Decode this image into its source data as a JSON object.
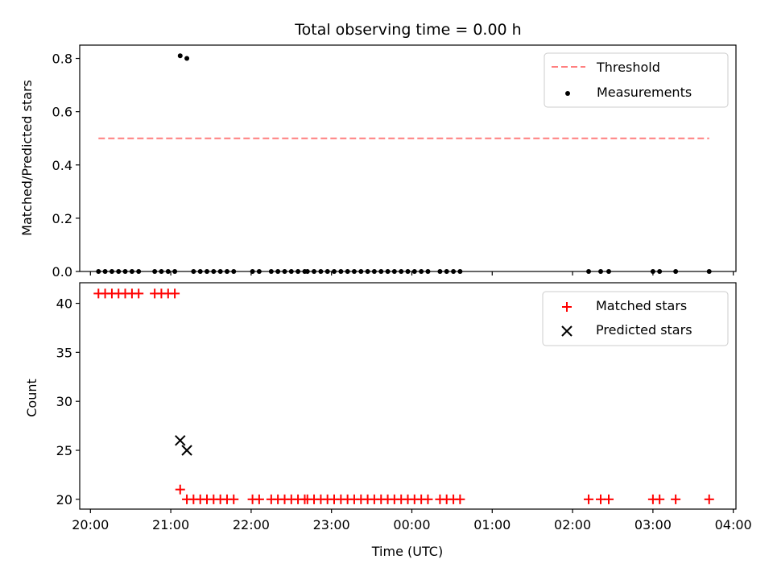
{
  "chart_data": [
    {
      "type": "scatter",
      "panel": "top",
      "title": "Total observing time = 0.00 h",
      "xlabel": "",
      "ylabel": "Matched/Predicted stars",
      "ylim": [
        0,
        0.85
      ],
      "yticks": [
        0.0,
        0.2,
        0.4,
        0.6,
        0.8
      ],
      "ytick_labels": [
        "0.0",
        "0.2",
        "0.4",
        "0.6",
        "0.8"
      ],
      "xlim": [
        -0.1333,
        8.0333
      ],
      "xtick_values": [
        0,
        1,
        2,
        3,
        4,
        5,
        6,
        7,
        8
      ],
      "grid": false,
      "legend": "top-right",
      "series": [
        {
          "name": "Threshold",
          "kind": "line",
          "style": "dashed",
          "color": "#ff7f7f",
          "x": [
            0.1,
            7.7
          ],
          "y": [
            0.5,
            0.5
          ]
        },
        {
          "name": "Measurements",
          "kind": "scatter",
          "marker": "dot",
          "color": "#000000",
          "x": [
            0.1,
            0.183,
            0.267,
            0.35,
            0.433,
            0.517,
            0.6,
            0.8,
            0.883,
            0.967,
            1.05,
            1.117,
            1.2,
            1.283,
            1.367,
            1.45,
            1.533,
            1.617,
            1.7,
            1.783,
            2.017,
            2.1,
            2.25,
            2.333,
            2.417,
            2.5,
            2.583,
            2.667,
            2.7,
            2.783,
            2.867,
            2.95,
            3.033,
            3.117,
            3.2,
            3.283,
            3.367,
            3.45,
            3.533,
            3.617,
            3.7,
            3.783,
            3.867,
            3.95,
            4.033,
            4.117,
            4.2,
            4.35,
            4.433,
            4.517,
            4.6,
            6.2,
            6.35,
            6.45,
            7.0,
            7.083,
            7.283,
            7.7
          ],
          "y": [
            0,
            0,
            0,
            0,
            0,
            0,
            0,
            0,
            0,
            0,
            0,
            0.81,
            0.8,
            0,
            0,
            0,
            0,
            0,
            0,
            0,
            0,
            0,
            0,
            0,
            0,
            0,
            0,
            0,
            0,
            0,
            0,
            0,
            0,
            0,
            0,
            0,
            0,
            0,
            0,
            0,
            0,
            0,
            0,
            0,
            0,
            0,
            0,
            0,
            0,
            0,
            0,
            0,
            0,
            0,
            0,
            0,
            0,
            0
          ]
        }
      ]
    },
    {
      "type": "scatter",
      "panel": "bottom",
      "title": "",
      "xlabel": "Time (UTC)",
      "ylabel": "Count",
      "ylim": [
        19.0,
        42.1
      ],
      "yticks": [
        20,
        25,
        30,
        35,
        40
      ],
      "ytick_labels": [
        "20",
        "25",
        "30",
        "35",
        "40"
      ],
      "xlim": [
        -0.1333,
        8.0333
      ],
      "xtick_values": [
        0,
        1,
        2,
        3,
        4,
        5,
        6,
        7,
        8
      ],
      "xtick_labels": [
        "20:00",
        "21:00",
        "22:00",
        "23:00",
        "00:00",
        "01:00",
        "02:00",
        "03:00",
        "04:00"
      ],
      "grid": false,
      "legend": "top-right",
      "series": [
        {
          "name": "Matched stars",
          "kind": "scatter",
          "marker": "plus",
          "color": "#ff0000",
          "x": [
            0.1,
            0.183,
            0.267,
            0.35,
            0.433,
            0.517,
            0.6,
            0.8,
            0.883,
            0.967,
            1.05,
            1.117,
            1.2,
            1.283,
            1.367,
            1.45,
            1.533,
            1.617,
            1.7,
            1.783,
            2.017,
            2.1,
            2.25,
            2.333,
            2.417,
            2.5,
            2.583,
            2.667,
            2.7,
            2.783,
            2.867,
            2.95,
            3.033,
            3.117,
            3.2,
            3.283,
            3.367,
            3.45,
            3.533,
            3.617,
            3.7,
            3.783,
            3.867,
            3.95,
            4.033,
            4.117,
            4.2,
            4.35,
            4.433,
            4.517,
            4.6,
            6.2,
            6.35,
            6.45,
            7.0,
            7.083,
            7.283,
            7.7
          ],
          "y": [
            41,
            41,
            41,
            41,
            41,
            41,
            41,
            41,
            41,
            41,
            41,
            21,
            20,
            20,
            20,
            20,
            20,
            20,
            20,
            20,
            20,
            20,
            20,
            20,
            20,
            20,
            20,
            20,
            20,
            20,
            20,
            20,
            20,
            20,
            20,
            20,
            20,
            20,
            20,
            20,
            20,
            20,
            20,
            20,
            20,
            20,
            20,
            20,
            20,
            20,
            20,
            20,
            20,
            20,
            20,
            20,
            20,
            20
          ]
        },
        {
          "name": "Predicted stars",
          "kind": "scatter",
          "marker": "x",
          "color": "#000000",
          "x": [
            1.117,
            1.2
          ],
          "y": [
            26,
            25
          ]
        }
      ]
    }
  ]
}
